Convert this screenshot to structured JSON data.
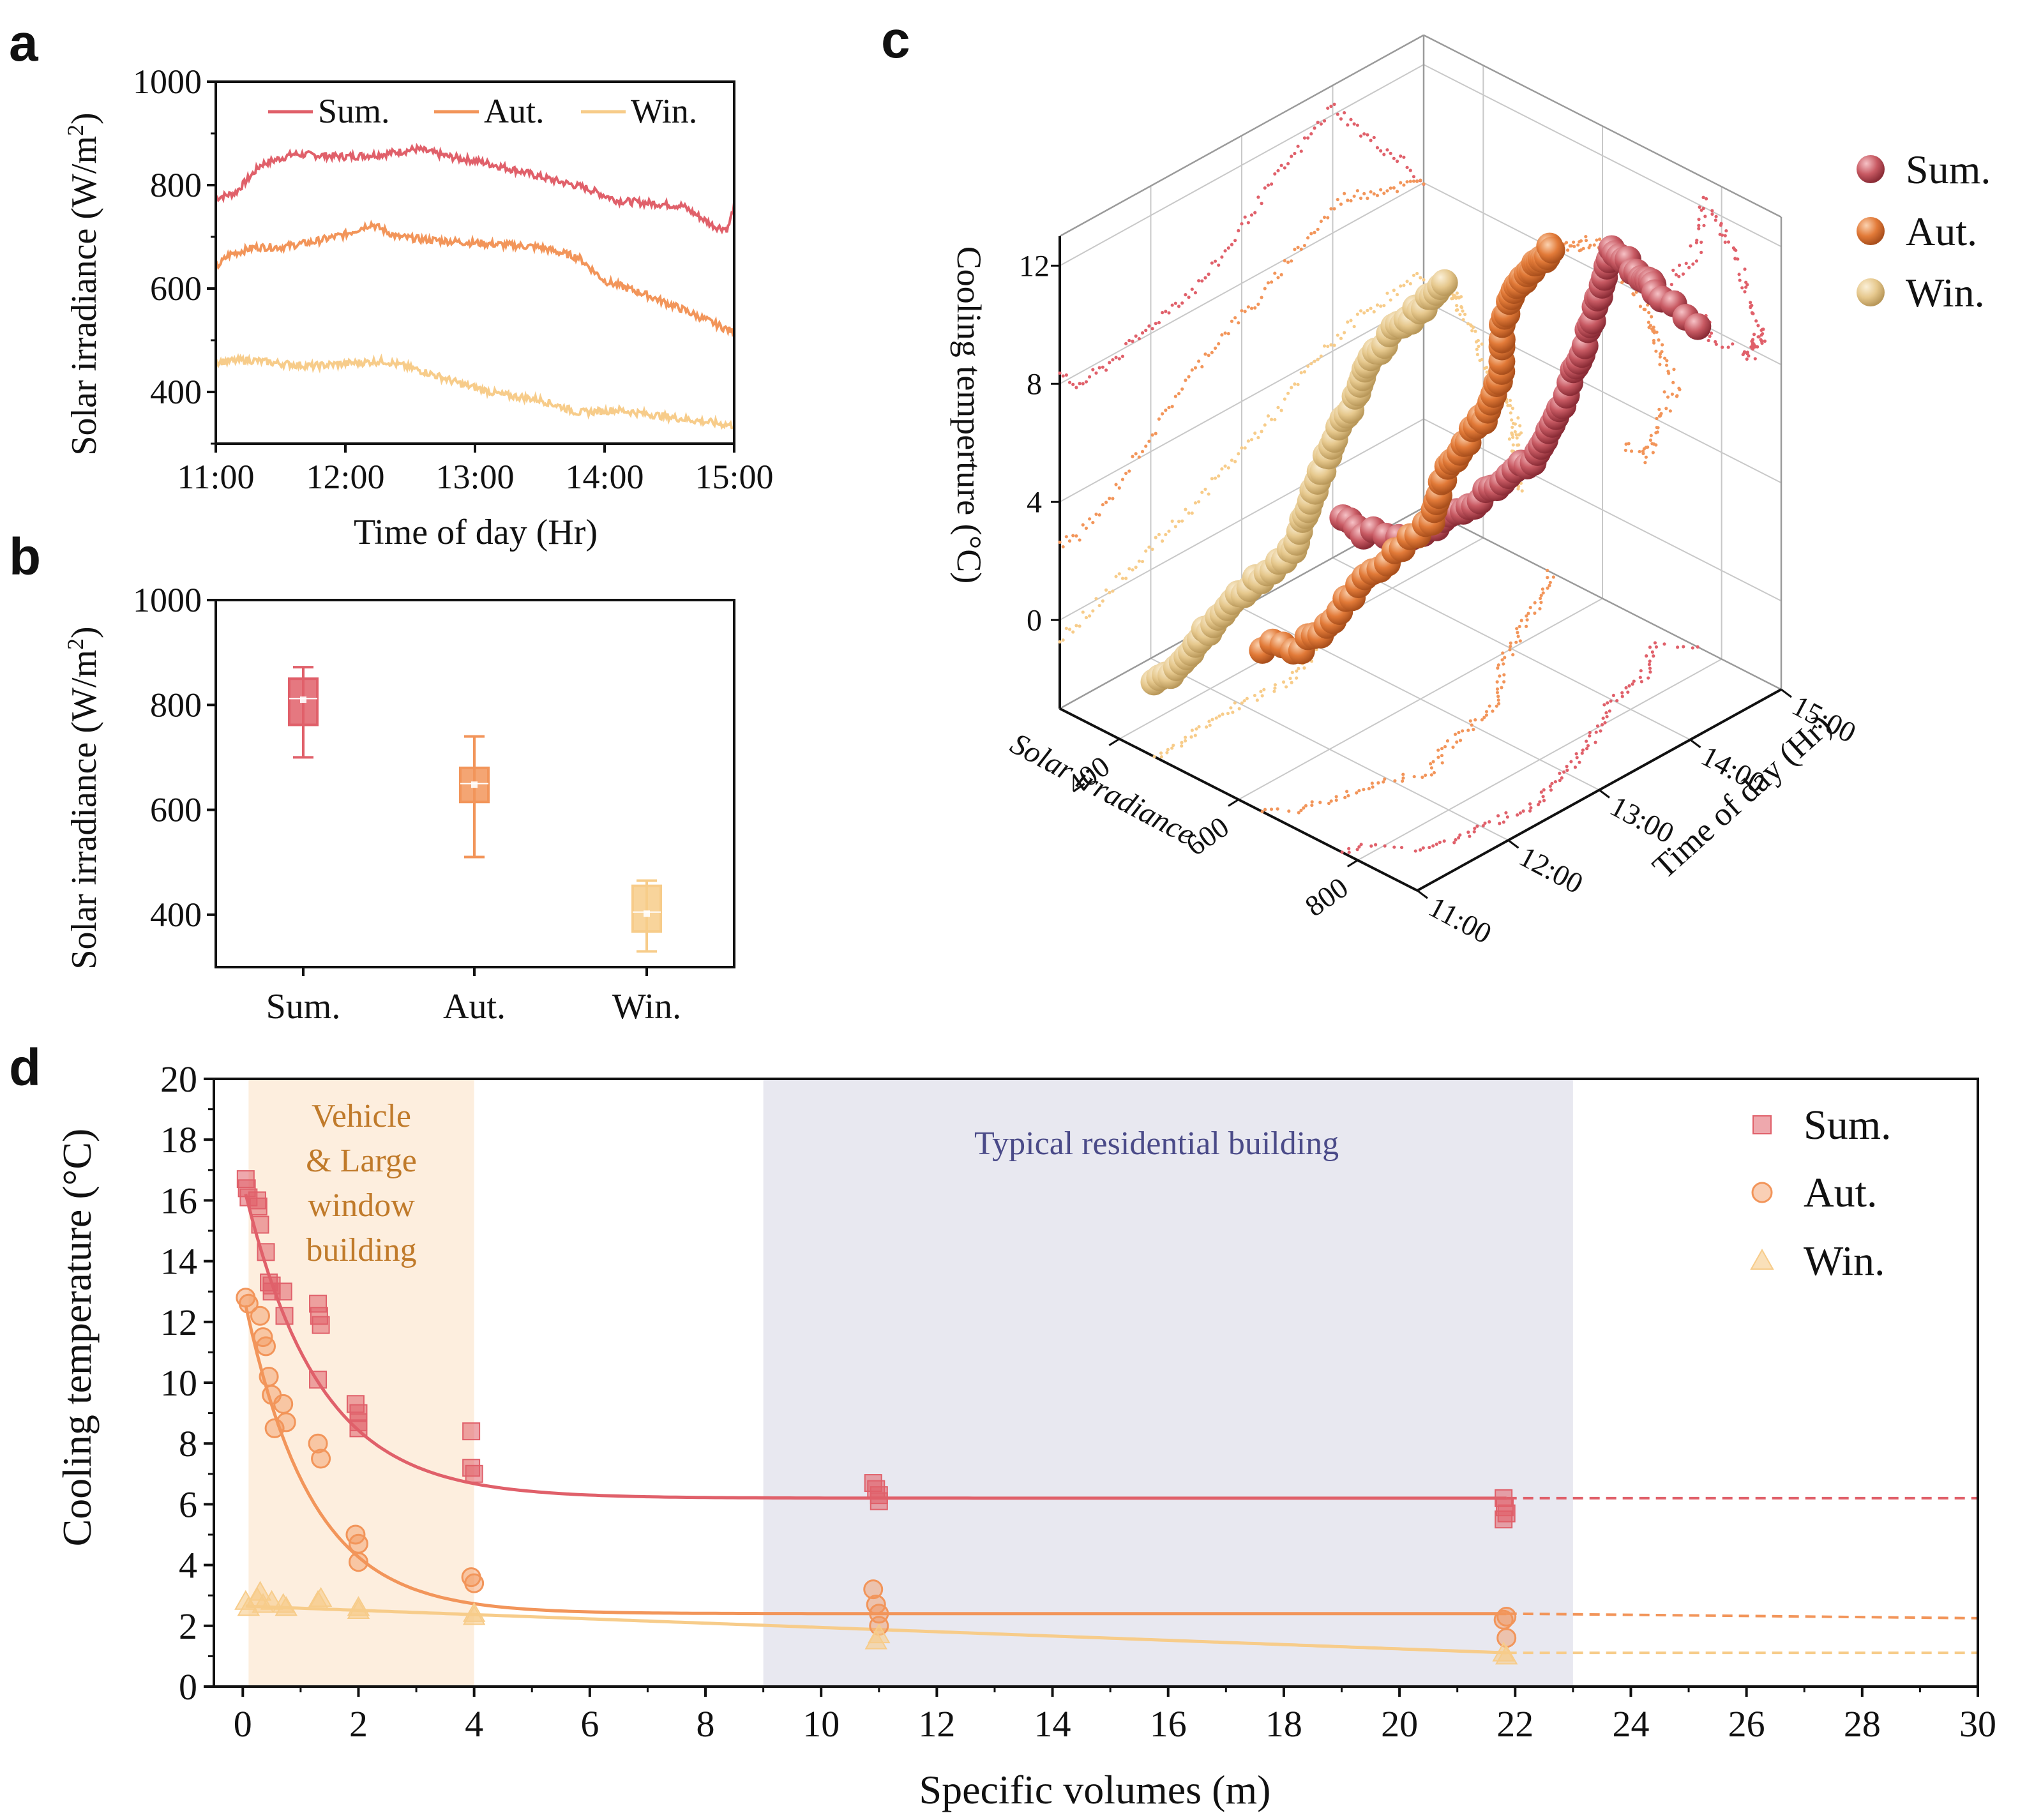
{
  "colors": {
    "sum": "#e0606a",
    "aut": "#f2955a",
    "win": "#f7cc8a",
    "sum_ball": "#c04a55",
    "aut_ball": "#e27a38",
    "win_ball": "#e9c98c",
    "vehicle_band": "#fdeede",
    "residential_band": "#e8e8f0",
    "vehicle_text": "#c07a2a",
    "residential_text": "#4a4a88"
  },
  "panel_a": {
    "letter": "a",
    "ylabel": "Solar irradiance (W/m",
    "ylabel_sup": "2",
    "ylabel_tail": ")",
    "xlabel": "Time of day (Hr)",
    "legend": [
      "Sum.",
      "Aut.",
      "Win."
    ]
  },
  "panel_b": {
    "letter": "b",
    "ylabel": "Solar irradiance (W/m",
    "ylabel_sup": "2",
    "ylabel_tail": ")"
  },
  "panel_c": {
    "letter": "c",
    "zlabel": "Cooling temperture (°C)",
    "x_axis_label": "Solar irradiance",
    "y_axis_label": "Time of day (Hr)",
    "legend": [
      "Sum.",
      "Aut.",
      "Win."
    ]
  },
  "panel_d": {
    "letter": "d",
    "ylabel": "Cooling temperature (°C)",
    "xlabel": "Specific volumes (m)",
    "annot_vehicle": [
      "Vehicle",
      "& Large",
      "window",
      "building"
    ],
    "annot_residential": "Typical residential building",
    "legend": [
      "Sum.",
      "Aut.",
      "Win."
    ]
  },
  "chart_data": [
    {
      "id": "a",
      "type": "line",
      "title": "",
      "xlabel": "Time of day (Hr)",
      "ylabel": "Solar irradiance (W/m2)",
      "xlim": [
        11,
        15
      ],
      "ylim": [
        300,
        1000
      ],
      "xticks": [
        11,
        12,
        13,
        14,
        15
      ],
      "xtick_labels": [
        "11:00",
        "12:00",
        "13:00",
        "14:00",
        "15:00"
      ],
      "yticks": [
        400,
        600,
        800,
        1000
      ],
      "series": [
        {
          "name": "Sum.",
          "x": [
            11.0,
            11.15,
            11.35,
            11.6,
            12.0,
            12.3,
            12.55,
            12.8,
            13.05,
            13.3,
            13.6,
            13.85,
            14.1,
            14.35,
            14.6,
            14.85,
            14.95,
            15.0
          ],
          "y": [
            775,
            785,
            840,
            860,
            855,
            860,
            870,
            855,
            845,
            830,
            810,
            795,
            770,
            765,
            760,
            720,
            715,
            760
          ]
        },
        {
          "name": "Aut.",
          "x": [
            11.0,
            11.1,
            11.3,
            11.5,
            11.75,
            12.0,
            12.2,
            12.4,
            12.6,
            12.9,
            13.2,
            13.5,
            13.8,
            14.0,
            14.3,
            14.6,
            15.0
          ],
          "y": [
            640,
            665,
            680,
            680,
            690,
            705,
            725,
            700,
            695,
            690,
            685,
            680,
            660,
            615,
            590,
            560,
            515
          ]
        },
        {
          "name": "Win.",
          "x": [
            11.0,
            11.25,
            11.5,
            11.75,
            12.0,
            12.3,
            12.6,
            12.9,
            13.2,
            13.5,
            13.8,
            14.1,
            14.4,
            14.7,
            15.0
          ],
          "y": [
            458,
            462,
            455,
            450,
            455,
            460,
            440,
            415,
            395,
            385,
            360,
            365,
            355,
            345,
            335
          ]
        }
      ]
    },
    {
      "id": "b",
      "type": "box",
      "ylabel": "Solar irradiance (W/m2)",
      "ylim": [
        300,
        1000
      ],
      "yticks": [
        400,
        600,
        800,
        1000
      ],
      "categories": [
        "Sum.",
        "Aut.",
        "Win."
      ],
      "boxes": [
        {
          "min": 700,
          "q1": 762,
          "median": 812,
          "mean": 810,
          "q3": 850,
          "max": 872
        },
        {
          "min": 510,
          "q1": 615,
          "median": 650,
          "mean": 648,
          "q3": 680,
          "max": 740
        },
        {
          "min": 330,
          "q1": 368,
          "median": 405,
          "mean": 402,
          "q3": 455,
          "max": 465
        }
      ]
    },
    {
      "id": "c",
      "type": "scatter3d",
      "xlabel": "Solar irradiance",
      "ylabel": "Time of day (Hr)",
      "zlabel": "Cooling temperture (°C)",
      "xlim": [
        300,
        900
      ],
      "ylim": [
        11,
        15
      ],
      "zlim": [
        -3,
        13
      ],
      "xticks": [
        400,
        600,
        800
      ],
      "yticks": [
        11,
        12,
        13,
        14,
        15
      ],
      "ytick_labels": [
        "11:00",
        "12:00",
        "13:00",
        "14:00",
        "15:00"
      ],
      "zticks": [
        0,
        4,
        8,
        12
      ],
      "series": [
        {
          "name": "Sum.",
          "irradiance": [
            775,
            785,
            840,
            855,
            860,
            868,
            855,
            840,
            820,
            795,
            770,
            760,
            720,
            760
          ],
          "time": [
            11.0,
            11.2,
            11.45,
            11.8,
            12.2,
            12.5,
            12.8,
            13.1,
            13.4,
            13.7,
            14.0,
            14.4,
            14.8,
            15.0
          ],
          "cooling": [
            8.2,
            7.6,
            7.7,
            8.0,
            8.5,
            8.7,
            9.3,
            10.2,
            11.0,
            11.6,
            12.3,
            10.5,
            9.0,
            7.8
          ]
        },
        {
          "name": "Aut.",
          "irradiance": [
            640,
            670,
            680,
            690,
            710,
            725,
            700,
            690,
            680,
            660,
            615,
            590,
            560,
            515
          ],
          "time": [
            11.0,
            11.2,
            11.5,
            11.8,
            12.1,
            12.3,
            12.6,
            12.9,
            13.2,
            13.5,
            13.8,
            14.1,
            14.5,
            15.0
          ],
          "cooling": [
            2.6,
            2.5,
            3.0,
            4.0,
            4.8,
            5.5,
            6.2,
            6.8,
            7.1,
            7.9,
            8.4,
            9.0,
            8.6,
            8.0
          ]
        },
        {
          "name": "Win.",
          "irradiance": [
            458,
            462,
            455,
            450,
            455,
            460,
            440,
            415,
            395,
            385,
            360,
            355,
            345,
            335
          ],
          "time": [
            11.0,
            11.3,
            11.6,
            11.9,
            12.2,
            12.5,
            12.8,
            13.1,
            13.4,
            13.7,
            14.0,
            14.3,
            14.7,
            15.0
          ],
          "cooling": [
            -0.6,
            -0.3,
            0.2,
            0.6,
            1.0,
            1.4,
            2.0,
            2.5,
            3.0,
            3.8,
            4.3,
            4.7,
            4.8,
            4.9
          ]
        }
      ]
    },
    {
      "id": "d",
      "type": "scatter",
      "xlabel": "Specific volumes (m)",
      "ylabel": "Cooling temperature (°C)",
      "xlim": [
        -0.5,
        30
      ],
      "ylim": [
        0,
        20
      ],
      "xticks": [
        0,
        2,
        4,
        6,
        8,
        10,
        12,
        14,
        16,
        18,
        20,
        22,
        24,
        26,
        28,
        30
      ],
      "yticks": [
        0,
        2,
        4,
        6,
        8,
        10,
        12,
        14,
        16,
        18,
        20
      ],
      "bands": [
        {
          "name": "Vehicle & Large window building",
          "x": [
            0.1,
            4.0
          ]
        },
        {
          "name": "Typical residential building",
          "x": [
            9.0,
            23.0
          ]
        }
      ],
      "series": [
        {
          "name": "Sum.",
          "marker": "square",
          "x": [
            0.05,
            0.07,
            0.1,
            0.25,
            0.27,
            0.3,
            0.4,
            0.45,
            0.5,
            0.5,
            0.7,
            0.72,
            1.3,
            1.32,
            1.35,
            1.3,
            1.95,
            2.0,
            2.0,
            2.0,
            3.95,
            3.95,
            4.0,
            10.9,
            10.95,
            11.0,
            11.0,
            21.8,
            21.82,
            21.85,
            21.8
          ],
          "y": [
            16.7,
            16.4,
            16.1,
            16.0,
            15.8,
            15.2,
            14.3,
            13.3,
            13.0,
            13.2,
            13.0,
            12.2,
            12.6,
            12.2,
            11.9,
            10.1,
            9.3,
            9.0,
            8.7,
            8.5,
            8.4,
            7.2,
            7.0,
            6.7,
            6.5,
            6.3,
            6.1,
            6.2,
            5.9,
            5.7,
            5.5
          ],
          "fit": {
            "form": "y = 6.2 + 10.4*exp(-x/1.3)"
          }
        },
        {
          "name": "Aut.",
          "marker": "circle",
          "x": [
            0.05,
            0.1,
            0.3,
            0.35,
            0.4,
            0.45,
            0.5,
            0.55,
            0.7,
            0.75,
            1.3,
            1.35,
            1.95,
            2.0,
            2.0,
            3.95,
            4.0,
            10.9,
            10.95,
            11.0,
            11.0,
            21.8,
            21.85,
            21.85
          ],
          "y": [
            12.8,
            12.6,
            12.2,
            11.5,
            11.2,
            10.2,
            9.6,
            8.5,
            9.3,
            8.7,
            8.0,
            7.5,
            5.0,
            4.7,
            4.1,
            3.6,
            3.4,
            3.2,
            2.7,
            2.4,
            2.0,
            2.2,
            1.6,
            2.3
          ],
          "fit": {
            "form": "y = 2.4 + 10.6*exp(-x/1.15)"
          }
        },
        {
          "name": "Win.",
          "marker": "triangle",
          "x": [
            0.05,
            0.1,
            0.25,
            0.3,
            0.35,
            0.5,
            0.7,
            0.75,
            1.3,
            1.35,
            2.0,
            2.0,
            4.0,
            4.0,
            10.95,
            11.0,
            21.8,
            21.85
          ],
          "y": [
            2.8,
            2.6,
            2.9,
            3.1,
            2.7,
            2.8,
            2.7,
            2.6,
            2.8,
            2.9,
            2.5,
            2.6,
            2.3,
            2.4,
            1.5,
            1.7,
            1.1,
            1.0
          ],
          "fit": {
            "form": "linear decay 2.65 -> 1.1 over 0..22"
          }
        }
      ]
    }
  ]
}
